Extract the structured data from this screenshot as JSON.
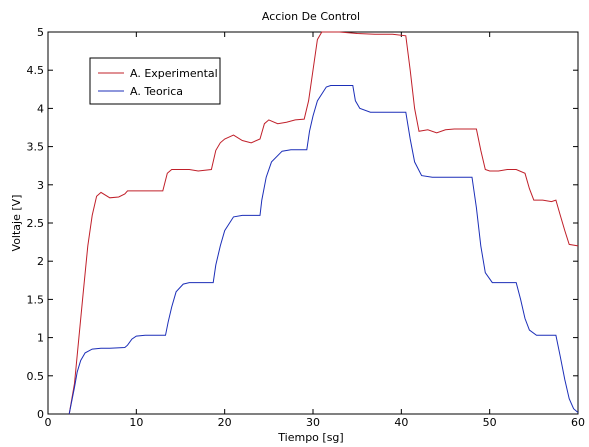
{
  "chart_data": {
    "type": "line",
    "title": "Accion De Control",
    "xlabel": "Tiempo [sg]",
    "ylabel": "Voltaje [V]",
    "xlim": [
      0,
      60
    ],
    "ylim": [
      0,
      5
    ],
    "xticks": [
      0,
      10,
      20,
      30,
      40,
      50,
      60
    ],
    "yticks": [
      0,
      0.5,
      1,
      1.5,
      2,
      2.5,
      3,
      3.5,
      4,
      4.5,
      5
    ],
    "grid": false,
    "legend_position": "top-left",
    "series": [
      {
        "name": "A. Experimental",
        "color": "#c0202a",
        "points": [
          [
            2.4,
            0
          ],
          [
            3,
            0.4
          ],
          [
            3.5,
            1.0
          ],
          [
            4,
            1.6
          ],
          [
            4.5,
            2.2
          ],
          [
            5,
            2.6
          ],
          [
            5.5,
            2.85
          ],
          [
            6,
            2.9
          ],
          [
            7,
            2.83
          ],
          [
            8,
            2.84
          ],
          [
            8.7,
            2.88
          ],
          [
            9,
            2.92
          ],
          [
            12,
            2.92
          ],
          [
            13,
            2.92
          ],
          [
            13.5,
            3.15
          ],
          [
            14,
            3.2
          ],
          [
            15,
            3.2
          ],
          [
            16,
            3.2
          ],
          [
            17,
            3.18
          ],
          [
            18.5,
            3.2
          ],
          [
            19,
            3.45
          ],
          [
            19.5,
            3.55
          ],
          [
            20,
            3.6
          ],
          [
            21,
            3.65
          ],
          [
            22,
            3.58
          ],
          [
            23,
            3.55
          ],
          [
            24,
            3.6
          ],
          [
            24.5,
            3.8
          ],
          [
            25,
            3.85
          ],
          [
            26,
            3.8
          ],
          [
            27,
            3.82
          ],
          [
            28,
            3.85
          ],
          [
            29,
            3.86
          ],
          [
            29.5,
            4.1
          ],
          [
            30,
            4.5
          ],
          [
            30.5,
            4.9
          ],
          [
            31,
            5
          ],
          [
            33,
            5
          ],
          [
            35,
            4.98
          ],
          [
            37,
            4.97
          ],
          [
            39,
            4.97
          ],
          [
            40.5,
            4.95
          ],
          [
            41,
            4.5
          ],
          [
            41.5,
            4.0
          ],
          [
            42,
            3.7
          ],
          [
            43,
            3.72
          ],
          [
            44,
            3.68
          ],
          [
            45,
            3.72
          ],
          [
            46,
            3.73
          ],
          [
            47,
            3.73
          ],
          [
            48.5,
            3.73
          ],
          [
            49,
            3.45
          ],
          [
            49.5,
            3.2
          ],
          [
            50,
            3.18
          ],
          [
            51,
            3.18
          ],
          [
            52,
            3.2
          ],
          [
            53,
            3.2
          ],
          [
            54,
            3.15
          ],
          [
            54.5,
            2.95
          ],
          [
            55,
            2.8
          ],
          [
            56,
            2.8
          ],
          [
            57,
            2.78
          ],
          [
            57.5,
            2.8
          ],
          [
            58,
            2.6
          ],
          [
            58.5,
            2.4
          ],
          [
            59,
            2.22
          ],
          [
            60,
            2.2
          ]
        ]
      },
      {
        "name": "A. Teorica",
        "color": "#1c2fb8",
        "points": [
          [
            2.4,
            0
          ],
          [
            3,
            0.35
          ],
          [
            3.3,
            0.55
          ],
          [
            3.7,
            0.7
          ],
          [
            4.2,
            0.8
          ],
          [
            5,
            0.85
          ],
          [
            6,
            0.86
          ],
          [
            7,
            0.86
          ],
          [
            8.7,
            0.87
          ],
          [
            9,
            0.9
          ],
          [
            9.5,
            0.98
          ],
          [
            10,
            1.02
          ],
          [
            11,
            1.03
          ],
          [
            13.3,
            1.03
          ],
          [
            13.6,
            1.2
          ],
          [
            14,
            1.4
          ],
          [
            14.5,
            1.6
          ],
          [
            15.3,
            1.7
          ],
          [
            16,
            1.72
          ],
          [
            17,
            1.72
          ],
          [
            18.7,
            1.72
          ],
          [
            19,
            1.95
          ],
          [
            19.5,
            2.2
          ],
          [
            20,
            2.4
          ],
          [
            21,
            2.58
          ],
          [
            22,
            2.6
          ],
          [
            24,
            2.6
          ],
          [
            24.2,
            2.8
          ],
          [
            24.7,
            3.1
          ],
          [
            25.3,
            3.3
          ],
          [
            26.5,
            3.44
          ],
          [
            27.5,
            3.46
          ],
          [
            29.3,
            3.46
          ],
          [
            29.6,
            3.7
          ],
          [
            30,
            3.9
          ],
          [
            30.5,
            4.1
          ],
          [
            31.5,
            4.28
          ],
          [
            32,
            4.3
          ],
          [
            33,
            4.3
          ],
          [
            34.5,
            4.3
          ],
          [
            34.8,
            4.1
          ],
          [
            35.3,
            4.0
          ],
          [
            36.5,
            3.95
          ],
          [
            38,
            3.95
          ],
          [
            40.5,
            3.95
          ],
          [
            41,
            3.6
          ],
          [
            41.5,
            3.3
          ],
          [
            42.3,
            3.12
          ],
          [
            43.5,
            3.1
          ],
          [
            45,
            3.1
          ],
          [
            46,
            3.1
          ],
          [
            48,
            3.1
          ],
          [
            48.5,
            2.7
          ],
          [
            49,
            2.2
          ],
          [
            49.5,
            1.85
          ],
          [
            50.3,
            1.72
          ],
          [
            51,
            1.72
          ],
          [
            53,
            1.72
          ],
          [
            53.5,
            1.5
          ],
          [
            54,
            1.25
          ],
          [
            54.5,
            1.1
          ],
          [
            55.3,
            1.03
          ],
          [
            57,
            1.03
          ],
          [
            57.5,
            1.03
          ],
          [
            58,
            0.75
          ],
          [
            58.5,
            0.45
          ],
          [
            59,
            0.2
          ],
          [
            59.5,
            0.07
          ],
          [
            60,
            0.02
          ]
        ]
      }
    ]
  }
}
